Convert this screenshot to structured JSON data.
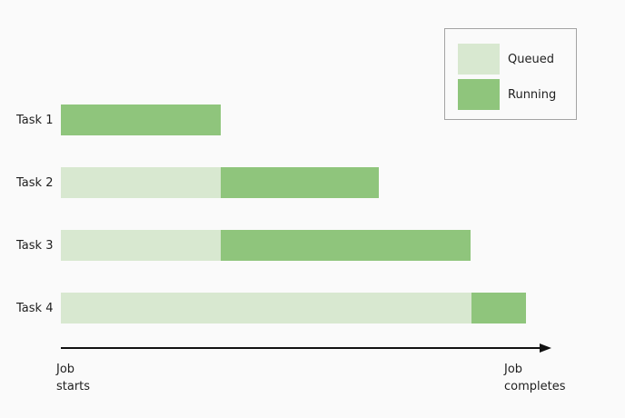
{
  "palette": {
    "background": "#fafafa",
    "text": "#1f1f1f",
    "axis": "#111111",
    "legend_border": "#a3a3a3"
  },
  "chart_data": {
    "type": "bar",
    "variant": "horizontal-stacked-gantt",
    "title": "",
    "categories": [
      "Task 1",
      "Task 2",
      "Task 3",
      "Task 4"
    ],
    "unit": "percent of job duration (0 = job starts, 100 = job completes)",
    "series": [
      {
        "name": "Queued",
        "color": "#d8e8d0"
      },
      {
        "name": "Running",
        "color": "#8fc57c"
      }
    ],
    "tasks": [
      {
        "label": "Task 1",
        "segments": [
          {
            "state": "Running",
            "start": 0,
            "end": 32.6
          }
        ]
      },
      {
        "label": "Task 2",
        "segments": [
          {
            "state": "Queued",
            "start": 0,
            "end": 32.6
          },
          {
            "state": "Running",
            "start": 32.6,
            "end": 64.8
          }
        ]
      },
      {
        "label": "Task 3",
        "segments": [
          {
            "state": "Queued",
            "start": 0,
            "end": 32.6
          },
          {
            "state": "Running",
            "start": 32.6,
            "end": 83.5
          }
        ]
      },
      {
        "label": "Task 4",
        "segments": [
          {
            "state": "Queued",
            "start": 0,
            "end": 83.7
          },
          {
            "state": "Running",
            "start": 83.7,
            "end": 94.8
          }
        ]
      }
    ],
    "x_axis": {
      "start_label": "Job starts",
      "end_label": "Job completes",
      "arrow": true,
      "range": [
        0,
        100
      ]
    },
    "legend_position": "top-right",
    "grid": false
  }
}
